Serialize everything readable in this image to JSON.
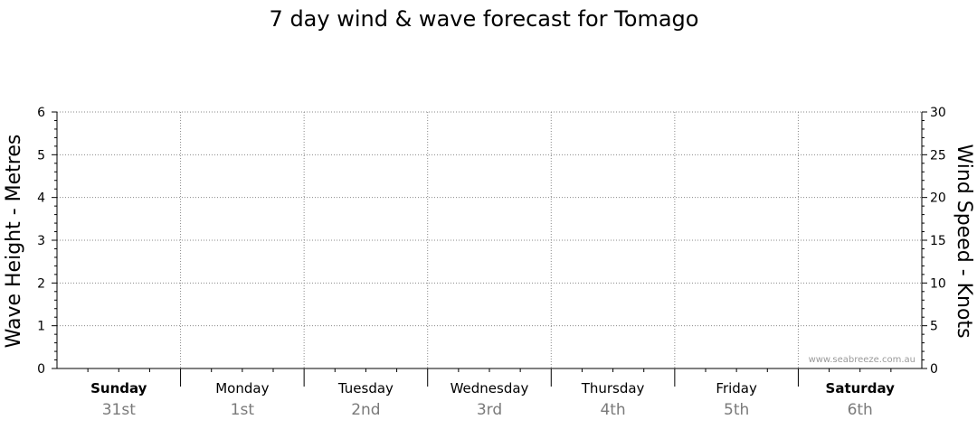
{
  "chart_data": {
    "type": "line",
    "title": "7 day wind & wave forecast for Tomago",
    "ylabel_left": "Wave Height - Metres",
    "ylabel_right": "Wind Speed - Knots",
    "ylim_left": [
      0,
      6
    ],
    "ylim_right": [
      0,
      30
    ],
    "yticks_left": [
      "0",
      "1",
      "2",
      "3",
      "4",
      "5",
      "6"
    ],
    "yticks_right": [
      "0",
      "5",
      "10",
      "15",
      "20",
      "25",
      "30"
    ],
    "grid": true,
    "days": [
      {
        "day": "Sunday",
        "date": "31st",
        "bold": true
      },
      {
        "day": "Monday",
        "date": "1st",
        "bold": false
      },
      {
        "day": "Tuesday",
        "date": "2nd",
        "bold": false
      },
      {
        "day": "Wednesday",
        "date": "3rd",
        "bold": false
      },
      {
        "day": "Thursday",
        "date": "4th",
        "bold": false
      },
      {
        "day": "Friday",
        "date": "5th",
        "bold": false
      },
      {
        "day": "Saturday",
        "date": "6th",
        "bold": true
      }
    ],
    "series": [],
    "credit": "www.seabreeze.com.au"
  }
}
